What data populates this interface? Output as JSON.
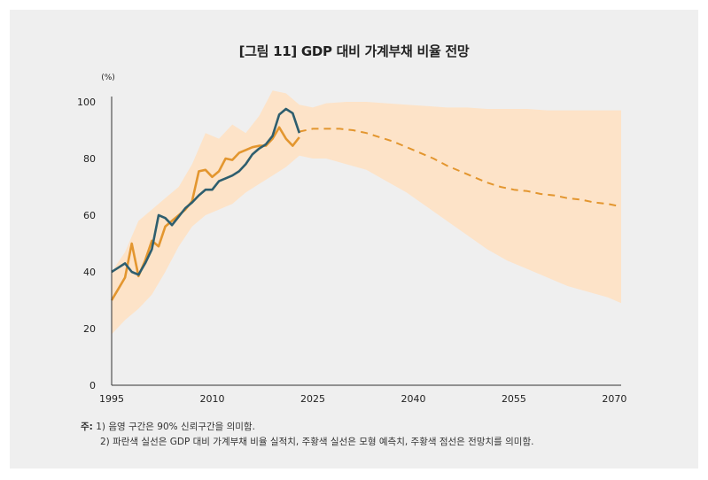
{
  "title": "[그림 11] GDP 대비 가계부채 비율 전망",
  "notes": {
    "lead": "주:",
    "line1": "1) 음영 구간은 90% 신뢰구간을 의미함.",
    "line2": "2) 파란색 실선은 GDP 대비 가계부채 비율 실적치, 주황색 실선은 모형 예측치, 주황색 점선은 전망치를 의미함."
  },
  "colors": {
    "actual": "#2e5e6e",
    "model": "#e3962f",
    "band": "#fde3c8",
    "panel": "#efefef"
  },
  "chart_data": {
    "type": "line",
    "ylabel": "(%)",
    "ylim": [
      0,
      100
    ],
    "xlim": [
      1995,
      2071
    ],
    "yticks": [
      "0",
      "20",
      "40",
      "60",
      "80",
      "100"
    ],
    "xticks": [
      "1995",
      "2010",
      "2025",
      "2040",
      "2055",
      "2070"
    ],
    "grid": false,
    "series": [
      {
        "style": "solid",
        "color": "#2e5e6e",
        "x": [
          1995,
          1996,
          1997,
          1998,
          1999,
          2000,
          2001,
          2002,
          2003,
          2004,
          2005,
          2006,
          2007,
          2008,
          2009,
          2010,
          2011,
          2012,
          2013,
          2014,
          2015,
          2016,
          2017,
          2018,
          2019,
          2020,
          2021,
          2022,
          2023
        ],
        "y": [
          40,
          41.5,
          43,
          40,
          39,
          43,
          48,
          60,
          59,
          56.5,
          59.5,
          62.5,
          64.5,
          67,
          69,
          69,
          72,
          73,
          74,
          75.5,
          78,
          81.5,
          83.5,
          85,
          88,
          95.5,
          97.5,
          96,
          89
        ]
      },
      {
        "style": "solid",
        "color": "#e3962f",
        "x": [
          1995,
          1996,
          1997,
          1998,
          1999,
          2000,
          2001,
          2002,
          2003,
          2004,
          2005,
          2006,
          2007,
          2008,
          2009,
          2010,
          2011,
          2012,
          2013,
          2014,
          2015,
          2016,
          2017,
          2018,
          2019,
          2020,
          2021,
          2022,
          2023
        ],
        "y": [
          30,
          34,
          38,
          50,
          38.5,
          44,
          51,
          49,
          56,
          58,
          60,
          62,
          65,
          75.5,
          76,
          73.5,
          75.5,
          80,
          79.5,
          82,
          83,
          84,
          84.5,
          84.5,
          87,
          91,
          87,
          84.5,
          87.5
        ]
      },
      {
        "style": "dashed",
        "color": "#e3962f",
        "x": [
          2023,
          2025,
          2027,
          2029,
          2031,
          2033,
          2035,
          2037,
          2039,
          2041,
          2043,
          2045,
          2047,
          2049,
          2051,
          2053,
          2055,
          2057,
          2059,
          2061,
          2063,
          2065,
          2067,
          2069,
          2071
        ],
        "y": [
          89.5,
          90.5,
          90.5,
          90.5,
          90,
          89,
          87.5,
          86,
          84,
          82,
          80,
          77.5,
          75.5,
          73.5,
          71.5,
          70,
          69,
          68.5,
          67.5,
          67,
          66,
          65.5,
          64.5,
          64,
          63
        ]
      }
    ],
    "band": {
      "label": "90% 신뢰구간",
      "x": [
        1995,
        1997,
        1999,
        2001,
        2003,
        2005,
        2007,
        2009,
        2011,
        2013,
        2015,
        2017,
        2019,
        2021,
        2023,
        2025,
        2027,
        2030,
        2033,
        2036,
        2039,
        2042,
        2045,
        2048,
        2051,
        2054,
        2057,
        2060,
        2063,
        2066,
        2069,
        2071
      ],
      "upper": [
        40,
        47,
        58,
        62,
        66,
        70,
        78,
        89,
        87,
        92,
        89,
        95,
        104,
        103,
        99,
        98,
        99.5,
        100,
        100,
        99.5,
        99,
        98.5,
        98,
        98,
        97.5,
        97.5,
        97.5,
        97,
        97,
        97,
        97,
        97
      ],
      "lower": [
        18,
        23,
        27,
        32,
        40,
        49,
        56,
        60,
        62,
        64,
        68,
        71,
        74,
        77,
        81,
        80,
        80,
        78,
        76,
        72,
        68,
        63,
        58,
        53,
        48,
        44,
        41,
        38,
        35,
        33,
        31,
        29
      ]
    }
  }
}
